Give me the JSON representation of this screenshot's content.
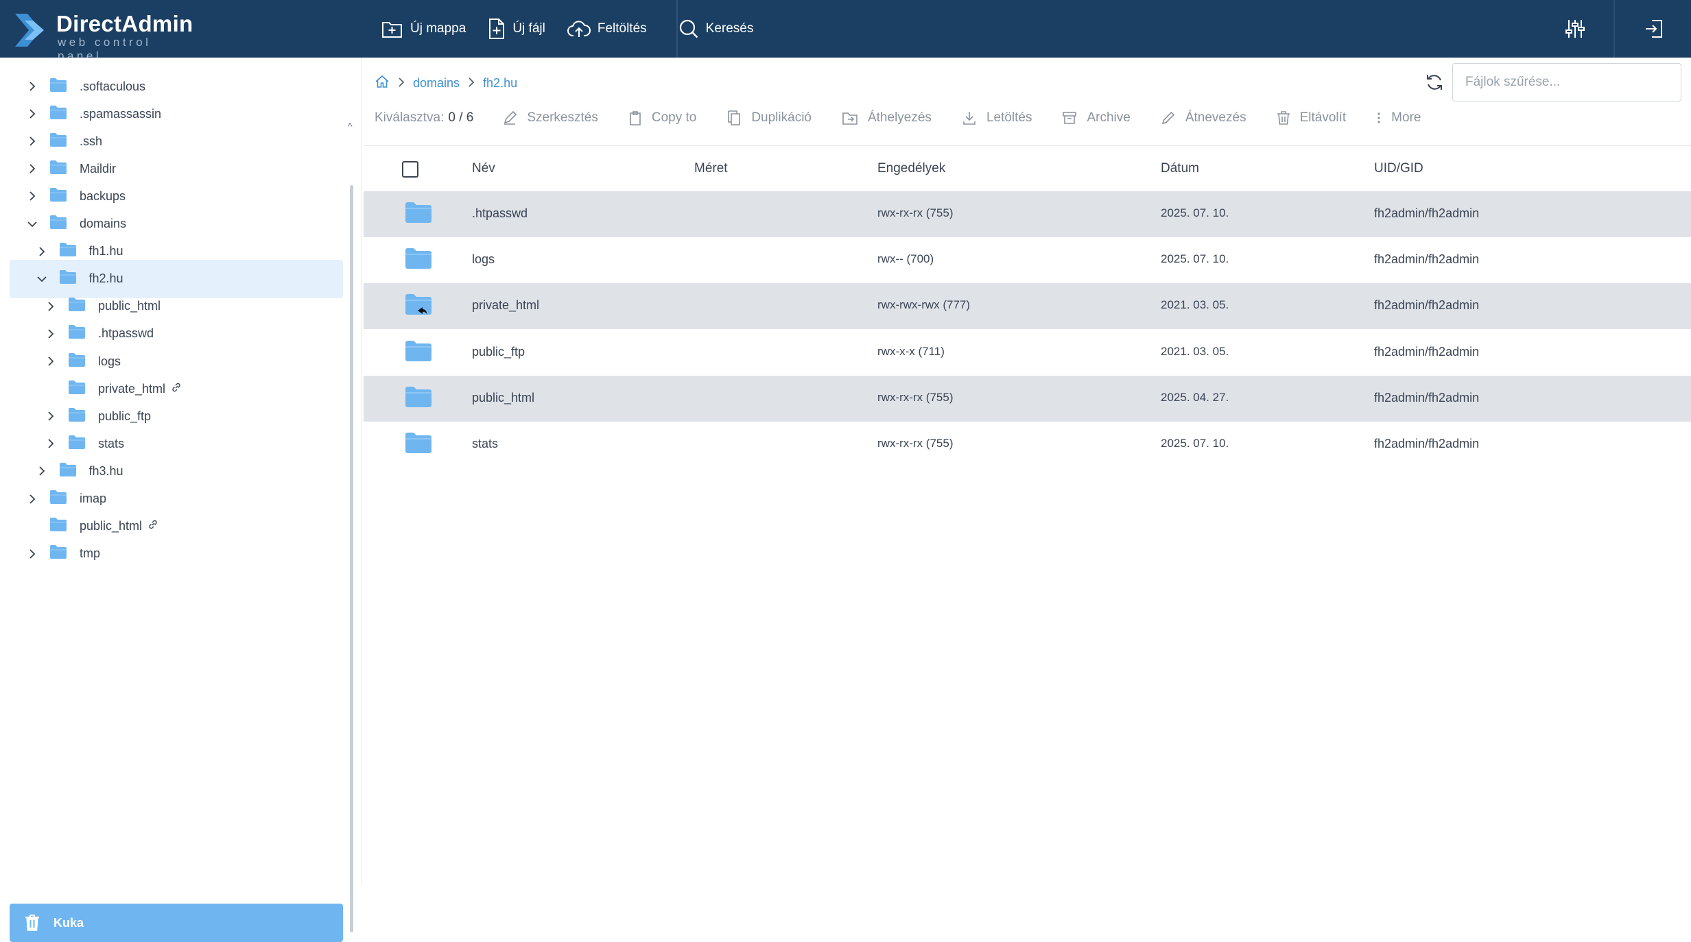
{
  "app": {
    "title": "DirectAdmin",
    "subtitle": "web control panel"
  },
  "topbar": {
    "new_folder": "Új mappa",
    "new_file": "Új fájl",
    "upload": "Feltöltés",
    "search": "Keresés",
    "icons": [
      "folder-plus-icon",
      "file-plus-icon",
      "cloud-upload-icon",
      "search-icon",
      "sliders-icon",
      "logout-icon"
    ]
  },
  "sidebar": {
    "items": [
      {
        "label": ".softaculous",
        "depth": 0,
        "chevron": "right",
        "link": false
      },
      {
        "label": ".spamassassin",
        "depth": 0,
        "chevron": "right",
        "link": false
      },
      {
        "label": ".ssh",
        "depth": 0,
        "chevron": "right",
        "link": false
      },
      {
        "label": "Maildir",
        "depth": 0,
        "chevron": "right",
        "link": false
      },
      {
        "label": "backups",
        "depth": 0,
        "chevron": "right",
        "link": false
      },
      {
        "label": "domains",
        "depth": 0,
        "chevron": "down",
        "link": false
      },
      {
        "label": "fh1.hu",
        "depth": 1,
        "chevron": "right",
        "link": false
      },
      {
        "label": "fh2.hu",
        "depth": 1,
        "chevron": "down",
        "link": false,
        "selected": true
      },
      {
        "label": "public_html",
        "depth": 2,
        "chevron": "right",
        "link": false
      },
      {
        "label": ".htpasswd",
        "depth": 2,
        "chevron": "right",
        "link": false
      },
      {
        "label": "logs",
        "depth": 2,
        "chevron": "right",
        "link": false
      },
      {
        "label": "private_html",
        "depth": 2,
        "chevron": "none",
        "link": true
      },
      {
        "label": "public_ftp",
        "depth": 2,
        "chevron": "right",
        "link": false
      },
      {
        "label": "stats",
        "depth": 2,
        "chevron": "right",
        "link": false
      },
      {
        "label": "fh3.hu",
        "depth": 1,
        "chevron": "right",
        "link": false
      },
      {
        "label": "imap",
        "depth": 0,
        "chevron": "right",
        "link": false
      },
      {
        "label": "public_html",
        "depth": 0,
        "chevron": "none",
        "link": true
      },
      {
        "label": "tmp",
        "depth": 0,
        "chevron": "right",
        "link": false
      }
    ],
    "trash_label": "Kuka"
  },
  "breadcrumb": {
    "items": [
      "domains",
      "fh2.hu"
    ]
  },
  "filter": {
    "placeholder": "Fájlok szűrése..."
  },
  "toolbar": {
    "selected_label": "Kiválasztva:",
    "selected_value": "0 / 6",
    "actions": [
      "Szerkesztés",
      "Copy to",
      "Duplikáció",
      "Áthelyezés",
      "Letöltés",
      "Archive",
      "Átnevezés",
      "Eltávolít",
      "More"
    ]
  },
  "table": {
    "columns": [
      "Név",
      "Méret",
      "Engedélyek",
      "Dátum",
      "UID/GID"
    ],
    "rows": [
      {
        "name": ".htpasswd",
        "size": "",
        "perms": "rwx-rx-rx (755)",
        "date": "2025. 07. 10.",
        "owner": "fh2admin/fh2admin",
        "symlink": false
      },
      {
        "name": "logs",
        "size": "",
        "perms": "rwx-- (700)",
        "date": "2025. 07. 10.",
        "owner": "fh2admin/fh2admin",
        "symlink": false
      },
      {
        "name": "private_html",
        "size": "",
        "perms": "rwx-rwx-rwx (777)",
        "date": "2021. 03. 05.",
        "owner": "fh2admin/fh2admin",
        "symlink": true
      },
      {
        "name": "public_ftp",
        "size": "",
        "perms": "rwx-x-x (711)",
        "date": "2021. 03. 05.",
        "owner": "fh2admin/fh2admin",
        "symlink": false
      },
      {
        "name": "public_html",
        "size": "",
        "perms": "rwx-rx-rx (755)",
        "date": "2025. 04. 27.",
        "owner": "fh2admin/fh2admin",
        "symlink": false
      },
      {
        "name": "stats",
        "size": "",
        "perms": "rwx-rx-rx (755)",
        "date": "2025. 07. 10.",
        "owner": "fh2admin/fh2admin",
        "symlink": false
      }
    ]
  },
  "colors": {
    "header": "#1b3f63",
    "accent": "#3d8fd6",
    "folder": "#6fb6f1",
    "row_alt": "#dfe3e8",
    "selected": "#e4f0fb"
  }
}
